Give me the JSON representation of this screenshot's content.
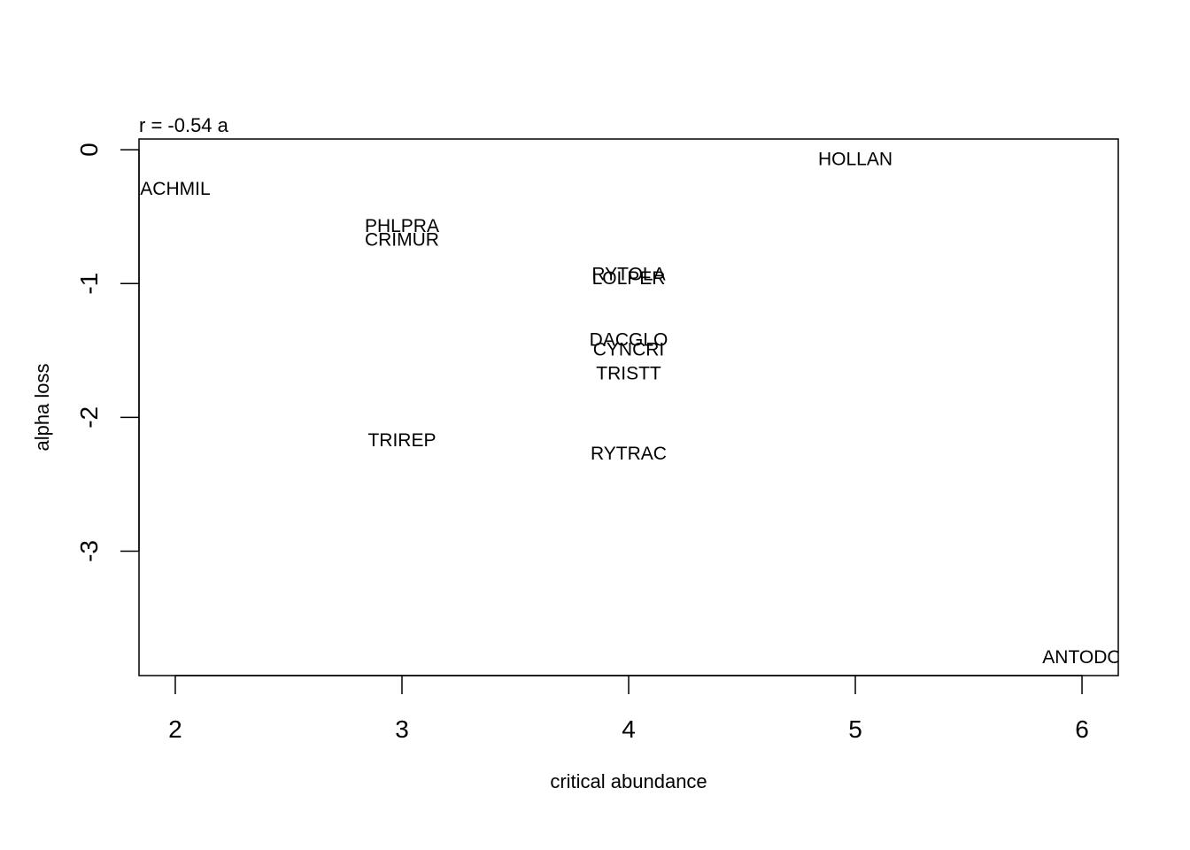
{
  "chart_data": {
    "type": "scatter",
    "title": "r = -0.54 a",
    "xlabel": "critical abundance",
    "ylabel": "alpha loss",
    "xlim": [
      1.84,
      6.16
    ],
    "ylim": [
      -3.93,
      0.08
    ],
    "x_ticks": [
      2,
      3,
      4,
      5,
      6
    ],
    "y_ticks": [
      0,
      -1,
      -2,
      -3
    ],
    "x_tick_labels": [
      "2",
      "3",
      "4",
      "5",
      "6"
    ],
    "y_tick_labels": [
      "0",
      "-1",
      "-2",
      "-3"
    ],
    "grid": false,
    "marker": "text-labels",
    "points": [
      {
        "label": "HOLLAN",
        "x": 5,
        "y": -0.07
      },
      {
        "label": "ACHMIL",
        "x": 2,
        "y": -0.29
      },
      {
        "label": "PHLPRA",
        "x": 3,
        "y": -0.57
      },
      {
        "label": "CRIMUR",
        "x": 3,
        "y": -0.67
      },
      {
        "label": "RYTOLA",
        "x": 4,
        "y": -0.93
      },
      {
        "label": "LOLPER",
        "x": 4,
        "y": -0.96
      },
      {
        "label": "DACGLO",
        "x": 4,
        "y": -1.42
      },
      {
        "label": "CYNCRI",
        "x": 4,
        "y": -1.49
      },
      {
        "label": "TRISTT",
        "x": 4,
        "y": -1.67
      },
      {
        "label": "TRIREP",
        "x": 3,
        "y": -2.17
      },
      {
        "label": "RYTRAC",
        "x": 4,
        "y": -2.27
      },
      {
        "label": "ANTODO",
        "x": 6,
        "y": -3.79
      }
    ]
  }
}
